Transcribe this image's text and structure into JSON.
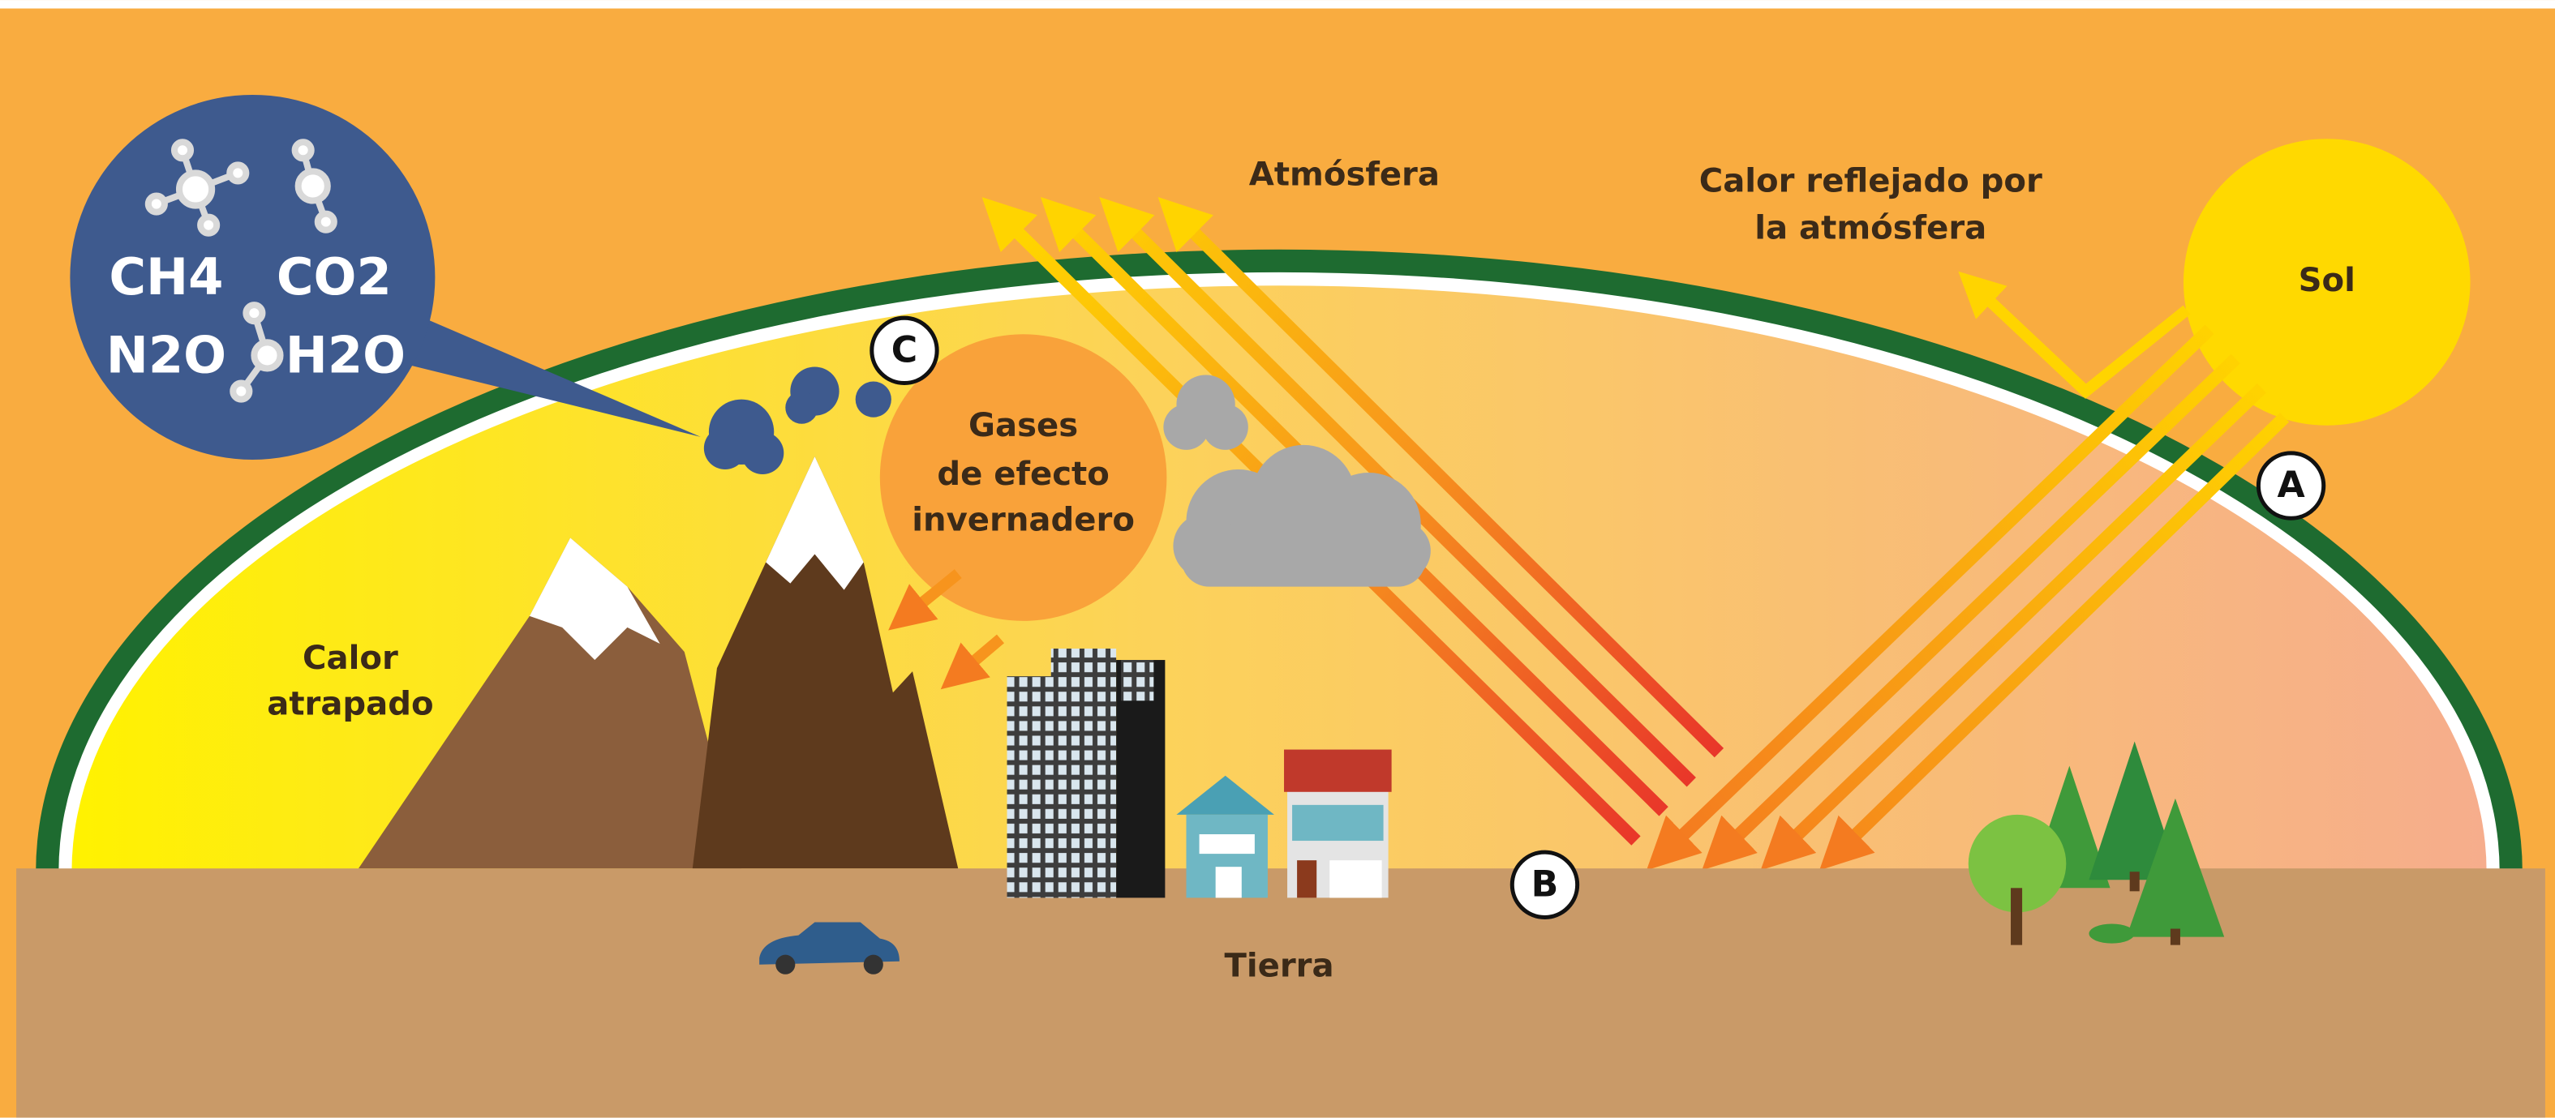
{
  "labels": {
    "atmosphere": "Atmósfera",
    "reflected_heat": [
      "Calor reflejado por",
      "la atmósfera"
    ],
    "sun": "Sol",
    "greenhouse_gases": [
      "Gases",
      "de efecto",
      "invernadero"
    ],
    "trapped_heat": [
      "Calor",
      "atrapado"
    ],
    "earth": "Tierra",
    "markers": [
      "A",
      "B",
      "C"
    ],
    "molecules": [
      "CH4",
      "CO2",
      "N2O",
      "H2O"
    ]
  }
}
